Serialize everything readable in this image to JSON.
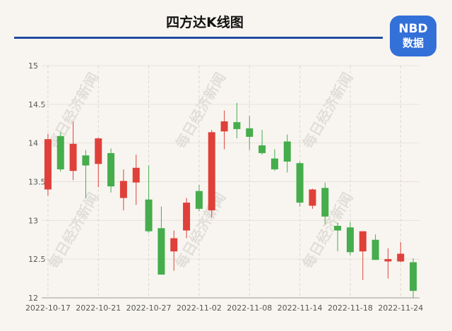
{
  "chart_data": {
    "type": "candlestick",
    "title": "四方达K线图",
    "logo": "NBD",
    "logo_sub": "数据",
    "watermark": "每日经济新闻",
    "categories": [
      "2022-10-17",
      null,
      null,
      null,
      "2022-10-21",
      null,
      null,
      null,
      "2022-10-27",
      null,
      null,
      null,
      "2022-11-02",
      null,
      null,
      null,
      "2022-11-08",
      null,
      null,
      null,
      "2022-11-14",
      null,
      null,
      null,
      "2022-11-18",
      null,
      null,
      null,
      "2022-11-24",
      null
    ],
    "open": [
      13.4,
      14.09,
      13.64,
      13.84,
      13.73,
      13.87,
      13.29,
      13.49,
      13.27,
      12.9,
      12.6,
      12.87,
      13.38,
      13.13,
      14.15,
      14.27,
      14.19,
      13.97,
      13.8,
      14.02,
      13.74,
      13.19,
      13.42,
      12.93,
      12.91,
      12.6,
      12.75,
      12.47,
      12.47,
      12.46
    ],
    "high": [
      14.12,
      14.14,
      14.28,
      13.91,
      14.07,
      13.93,
      13.66,
      13.85,
      13.71,
      13.18,
      12.87,
      13.29,
      13.46,
      14.17,
      14.42,
      14.52,
      14.35,
      14.17,
      13.92,
      14.11,
      13.76,
      13.41,
      13.49,
      12.97,
      12.98,
      12.86,
      12.82,
      12.64,
      12.72,
      12.51
    ],
    "low": [
      13.32,
      13.63,
      13.52,
      13.29,
      13.43,
      13.36,
      13.13,
      13.2,
      12.84,
      12.3,
      12.35,
      12.77,
      13.12,
      13.04,
      13.92,
      14.06,
      13.91,
      13.85,
      13.64,
      13.62,
      13.18,
      13.15,
      12.95,
      12.6,
      12.55,
      12.23,
      12.49,
      12.25,
      12.46,
      12.0
    ],
    "close": [
      14.05,
      13.66,
      13.99,
      13.71,
      14.06,
      13.44,
      13.51,
      13.68,
      12.86,
      12.3,
      12.77,
      13.23,
      13.15,
      14.14,
      14.28,
      14.18,
      14.08,
      13.87,
      13.66,
      13.76,
      13.23,
      13.4,
      13.05,
      12.87,
      12.59,
      12.86,
      12.49,
      12.5,
      12.57,
      12.09
    ],
    "up_color": "#e0403a",
    "down_color": "#45ad4c",
    "ylim": [
      12,
      15
    ],
    "yticks": [
      12,
      12.5,
      13,
      13.5,
      14,
      14.5,
      15
    ],
    "grid": true
  }
}
